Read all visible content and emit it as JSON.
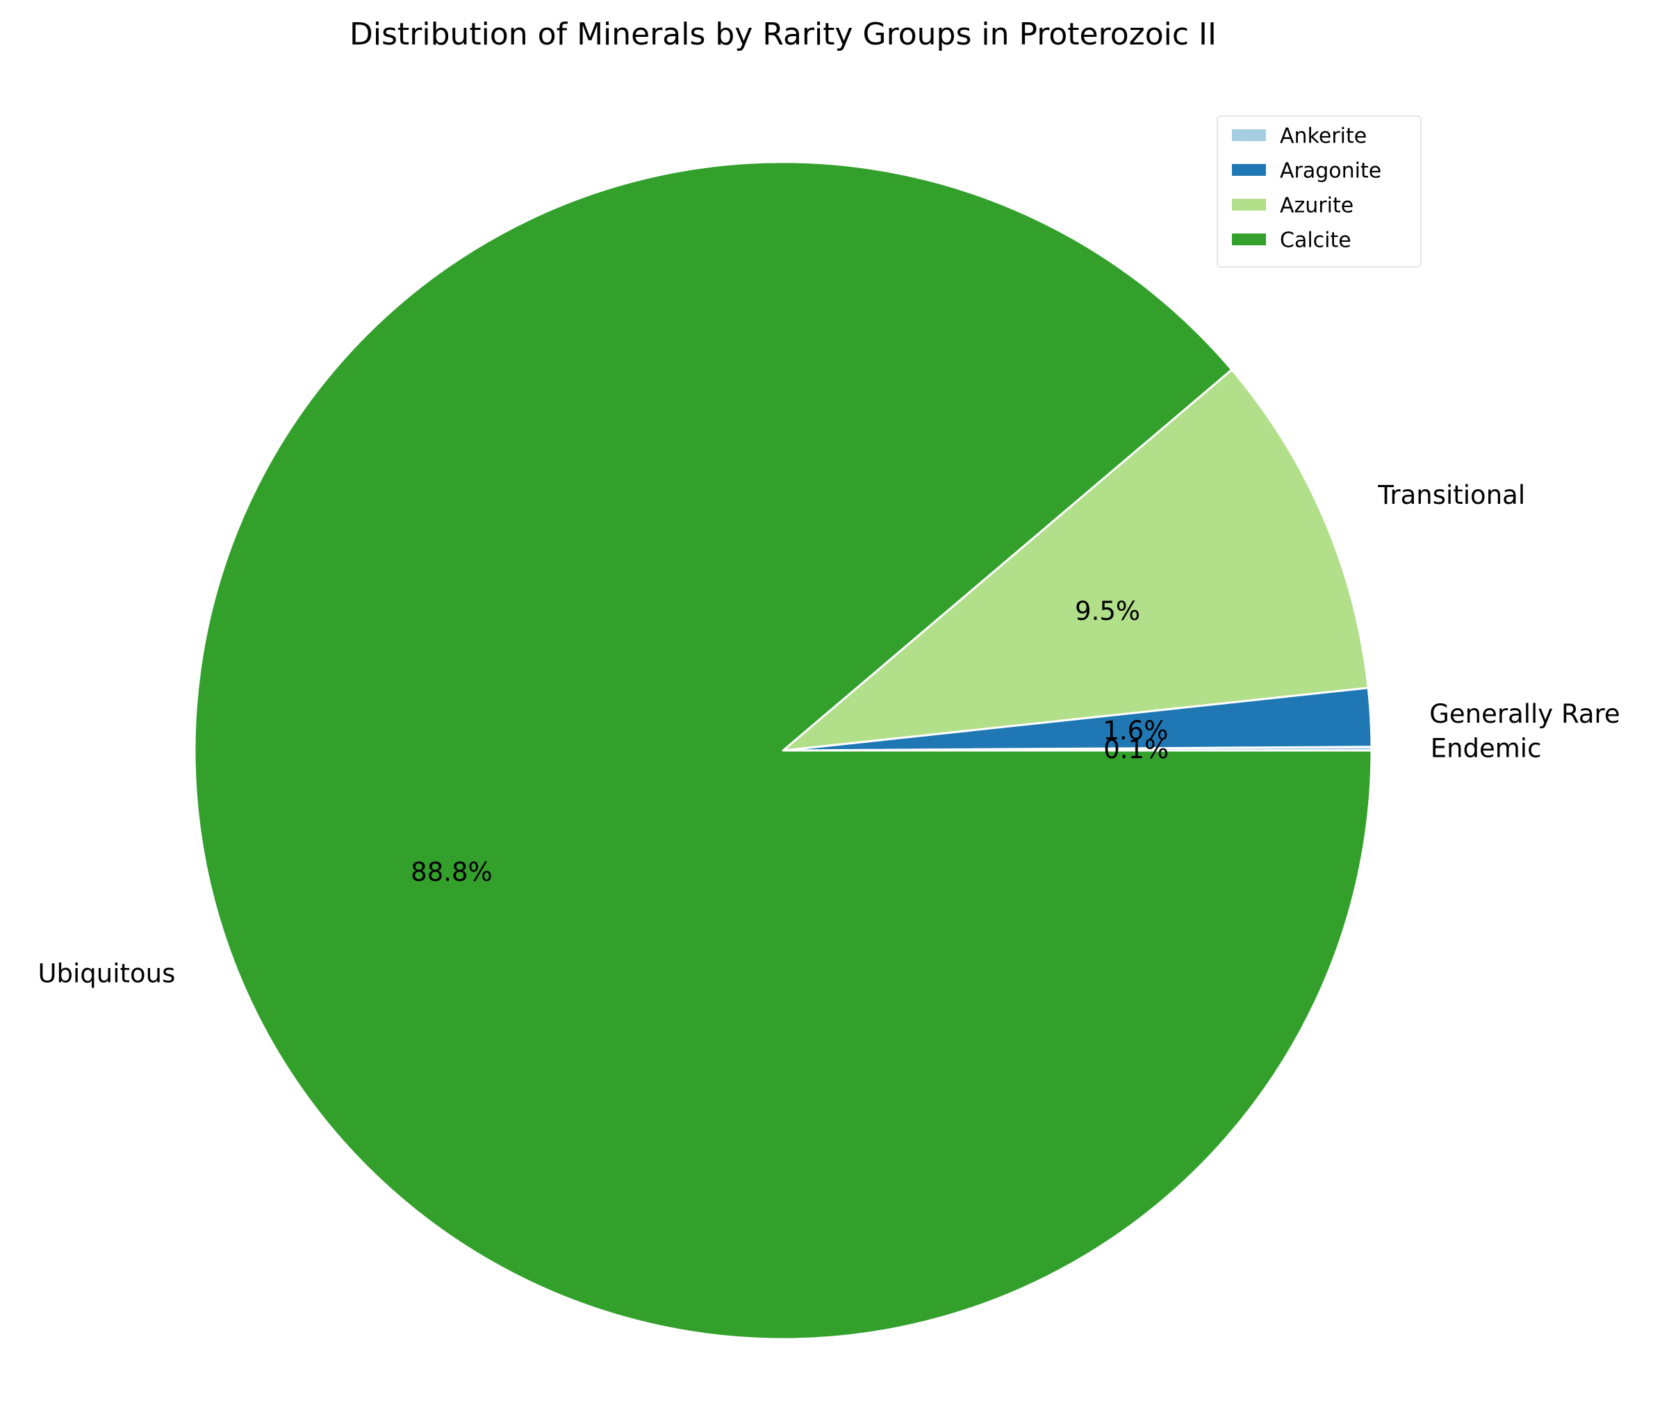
{
  "chart_data": {
    "type": "pie",
    "title": "Distribution of Minerals by Rarity Groups in Proterozoic II",
    "slices": [
      {
        "label": "Endemic",
        "percent": 0.1,
        "pct_label": "0.1%",
        "color": "#a6cee3"
      },
      {
        "label": "Generally Rare",
        "percent": 1.6,
        "pct_label": "1.6%",
        "color": "#1f78b4"
      },
      {
        "label": "Transitional",
        "percent": 9.5,
        "pct_label": "9.5%",
        "color": "#b2df8a"
      },
      {
        "label": "Ubiquitous",
        "percent": 88.8,
        "pct_label": "88.8%",
        "color": "#33a02c"
      }
    ],
    "start_angle_deg": 0,
    "direction": "counterclockwise",
    "legend": {
      "placement": "top-right",
      "entries": [
        {
          "label": "Ankerite",
          "color": "#a6cee3"
        },
        {
          "label": "Aragonite",
          "color": "#1f78b4"
        },
        {
          "label": "Azurite",
          "color": "#b2df8a"
        },
        {
          "label": "Calcite",
          "color": "#33a02c"
        }
      ]
    }
  }
}
